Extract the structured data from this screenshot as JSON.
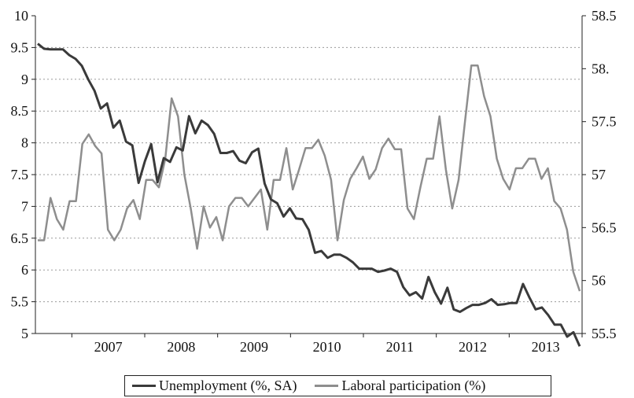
{
  "chart_data": {
    "type": "line",
    "x_tick_labels": [
      "2007",
      "2008",
      "2009",
      "2010",
      "2011",
      "2012",
      "2013"
    ],
    "ylim_left": [
      5,
      10
    ],
    "yticks_left": [
      "5",
      "5.5",
      "6",
      "6.5",
      "7",
      "7.5",
      "8",
      "8.5",
      "9",
      "9.5",
      "10"
    ],
    "ylim_right": [
      55.5,
      58.5
    ],
    "yticks_right": [
      "55.5",
      "56",
      "56.5",
      "57",
      "57.5",
      "58.",
      "58.5"
    ],
    "grid": "horizontal dotted",
    "legend_position": "bottom",
    "series": [
      {
        "name": "Unemployment (%, SA)",
        "axis": "left",
        "color": "#3a3a3a",
        "values": [
          9.56,
          9.48,
          9.47,
          9.47,
          9.47,
          9.38,
          9.32,
          9.21,
          9.0,
          8.82,
          8.54,
          8.62,
          8.24,
          8.35,
          8.02,
          7.96,
          7.37,
          7.71,
          7.98,
          7.38,
          7.76,
          7.7,
          7.93,
          7.88,
          8.42,
          8.15,
          8.35,
          8.28,
          8.14,
          7.84,
          7.84,
          7.87,
          7.72,
          7.68,
          7.85,
          7.91,
          7.36,
          7.11,
          7.05,
          6.84,
          6.97,
          6.81,
          6.8,
          6.63,
          6.27,
          6.3,
          6.19,
          6.24,
          6.24,
          6.19,
          6.12,
          6.02,
          6.02,
          6.02,
          5.97,
          5.99,
          6.02,
          5.97,
          5.73,
          5.6,
          5.65,
          5.55,
          5.89,
          5.65,
          5.47,
          5.72,
          5.38,
          5.34,
          5.4,
          5.45,
          5.45,
          5.48,
          5.54,
          5.45,
          5.46,
          5.48,
          5.48,
          5.78,
          5.57,
          5.38,
          5.41,
          5.29,
          5.14,
          5.14,
          4.95,
          5.02,
          4.8
        ]
      },
      {
        "name": "Laboral participation (%)",
        "axis": "right",
        "color": "#8e8e8e",
        "values": [
          56.38,
          56.38,
          56.78,
          56.58,
          56.48,
          56.75,
          56.75,
          57.29,
          57.38,
          57.27,
          57.2,
          56.48,
          56.38,
          56.48,
          56.68,
          56.76,
          56.58,
          56.95,
          56.95,
          56.88,
          57.15,
          57.72,
          57.55,
          57.0,
          56.68,
          56.3,
          56.7,
          56.5,
          56.6,
          56.38,
          56.7,
          56.78,
          56.78,
          56.7,
          56.78,
          56.86,
          56.48,
          56.95,
          56.95,
          57.25,
          56.86,
          57.05,
          57.25,
          57.25,
          57.33,
          57.18,
          56.95,
          56.38,
          56.76,
          56.96,
          57.06,
          57.17,
          56.96,
          57.05,
          57.25,
          57.34,
          57.24,
          57.24,
          56.68,
          56.58,
          56.88,
          57.15,
          57.15,
          57.55,
          57.05,
          56.68,
          56.95,
          57.5,
          58.03,
          58.03,
          57.74,
          57.55,
          57.15,
          56.96,
          56.86,
          57.06,
          57.06,
          57.15,
          57.15,
          56.96,
          57.06,
          56.75,
          56.68,
          56.48,
          56.08,
          55.9
        ]
      }
    ]
  }
}
